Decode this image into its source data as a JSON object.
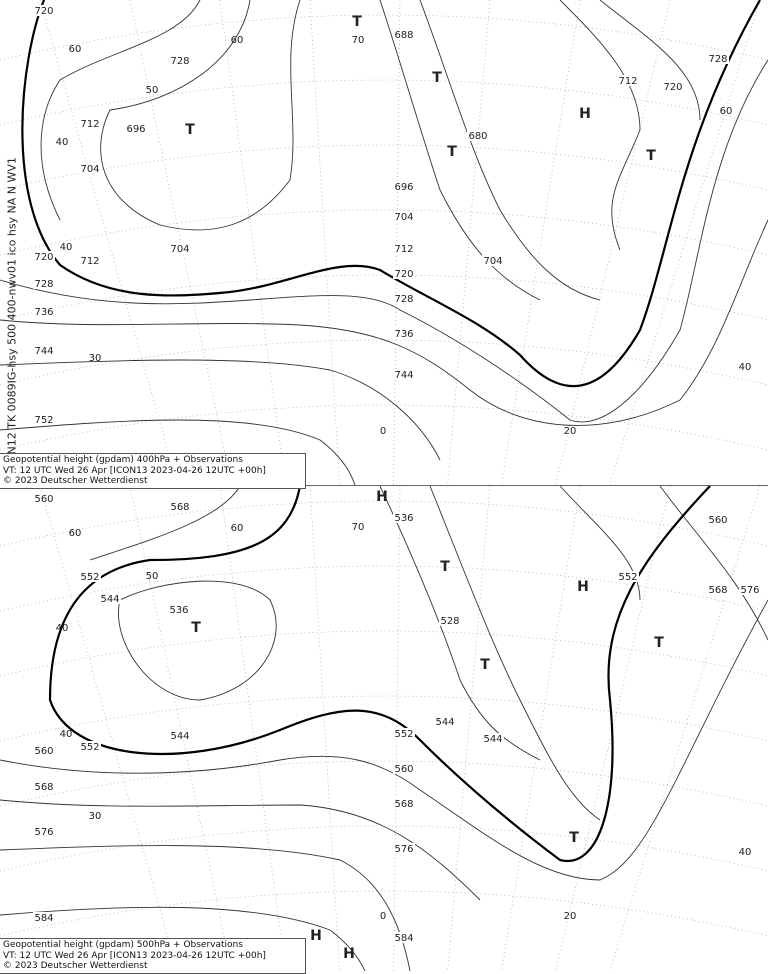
{
  "side_label": "N12 TK 0089IG-hsy 500 400-nwv01 ico hsy NA N WV1",
  "panels": [
    {
      "level": "400hPa",
      "caption": {
        "line1": "Geopotential height (gpdam) 400hPa + Observations",
        "line2": "VT: 12 UTC Wed  26 Apr  [ICON13  2023-04-26 12UTC  +00h]",
        "line3": "©  2023 Deutscher Wetterdienst"
      },
      "contour_labels": [
        "720",
        "728",
        "712",
        "696",
        "704",
        "704",
        "712",
        "720",
        "728",
        "736",
        "744",
        "752",
        "688",
        "680",
        "696",
        "704",
        "712",
        "720",
        "728",
        "736",
        "744",
        "712",
        "720",
        "728",
        "704"
      ],
      "grid_labels": [
        "60",
        "50",
        "40",
        "40",
        "30",
        "0",
        "20",
        "40",
        "60",
        "60",
        "70"
      ],
      "lows": [
        "T",
        "T",
        "T",
        "T",
        "T"
      ],
      "highs": [
        "H"
      ]
    },
    {
      "level": "500hPa",
      "caption": {
        "line1": "Geopotential height (gpdam) 500hPa + Observations",
        "line2": "VT: 12 UTC Wed  26 Apr [ICON13  2023-04-26 12UTC  +00h]",
        "line3": "©  2023 Deutscher Wetterdienst"
      },
      "contour_labels": [
        "560",
        "568",
        "552",
        "544",
        "536",
        "544",
        "552",
        "560",
        "568",
        "576",
        "584",
        "536",
        "528",
        "544",
        "552",
        "560",
        "568",
        "576",
        "584",
        "544",
        "552",
        "560",
        "568",
        "576"
      ],
      "grid_labels": [
        "60",
        "50",
        "40",
        "40",
        "30",
        "0",
        "20",
        "40",
        "60",
        "70"
      ],
      "lows": [
        "T",
        "T",
        "T",
        "T",
        "T"
      ],
      "highs": [
        "H",
        "H",
        "H",
        "H"
      ]
    }
  ],
  "colors": {
    "contour": "#333333",
    "grid": "#999999",
    "text": "#222222"
  }
}
